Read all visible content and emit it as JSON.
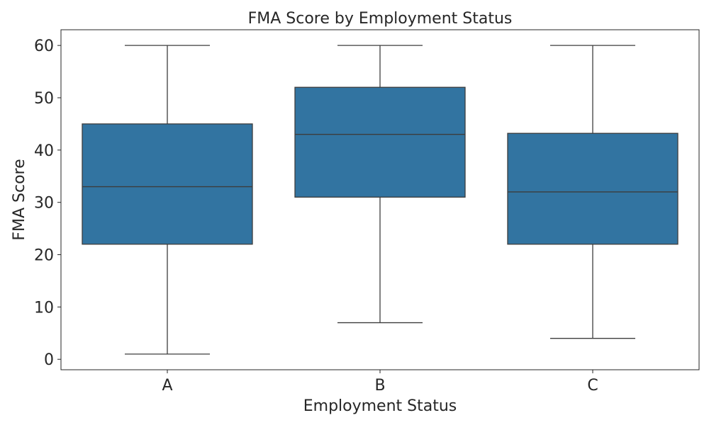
{
  "chart_data": {
    "type": "box",
    "title": "FMA Score by Employment Status",
    "xlabel": "Employment Status",
    "ylabel": "FMA Score",
    "ylim": [
      -2,
      63
    ],
    "yticks": [
      0,
      10,
      20,
      30,
      40,
      50,
      60
    ],
    "grid": false,
    "box_color": "#3274a1",
    "categories": [
      "A",
      "B",
      "C"
    ],
    "boxes": [
      {
        "category": "A",
        "min": 1,
        "q1": 22,
        "median": 33,
        "q3": 45,
        "max": 60
      },
      {
        "category": "B",
        "min": 7,
        "q1": 31,
        "median": 43,
        "q3": 52,
        "max": 60
      },
      {
        "category": "C",
        "min": 4,
        "q1": 22,
        "median": 32,
        "q3": 43.2,
        "max": 60
      }
    ]
  }
}
